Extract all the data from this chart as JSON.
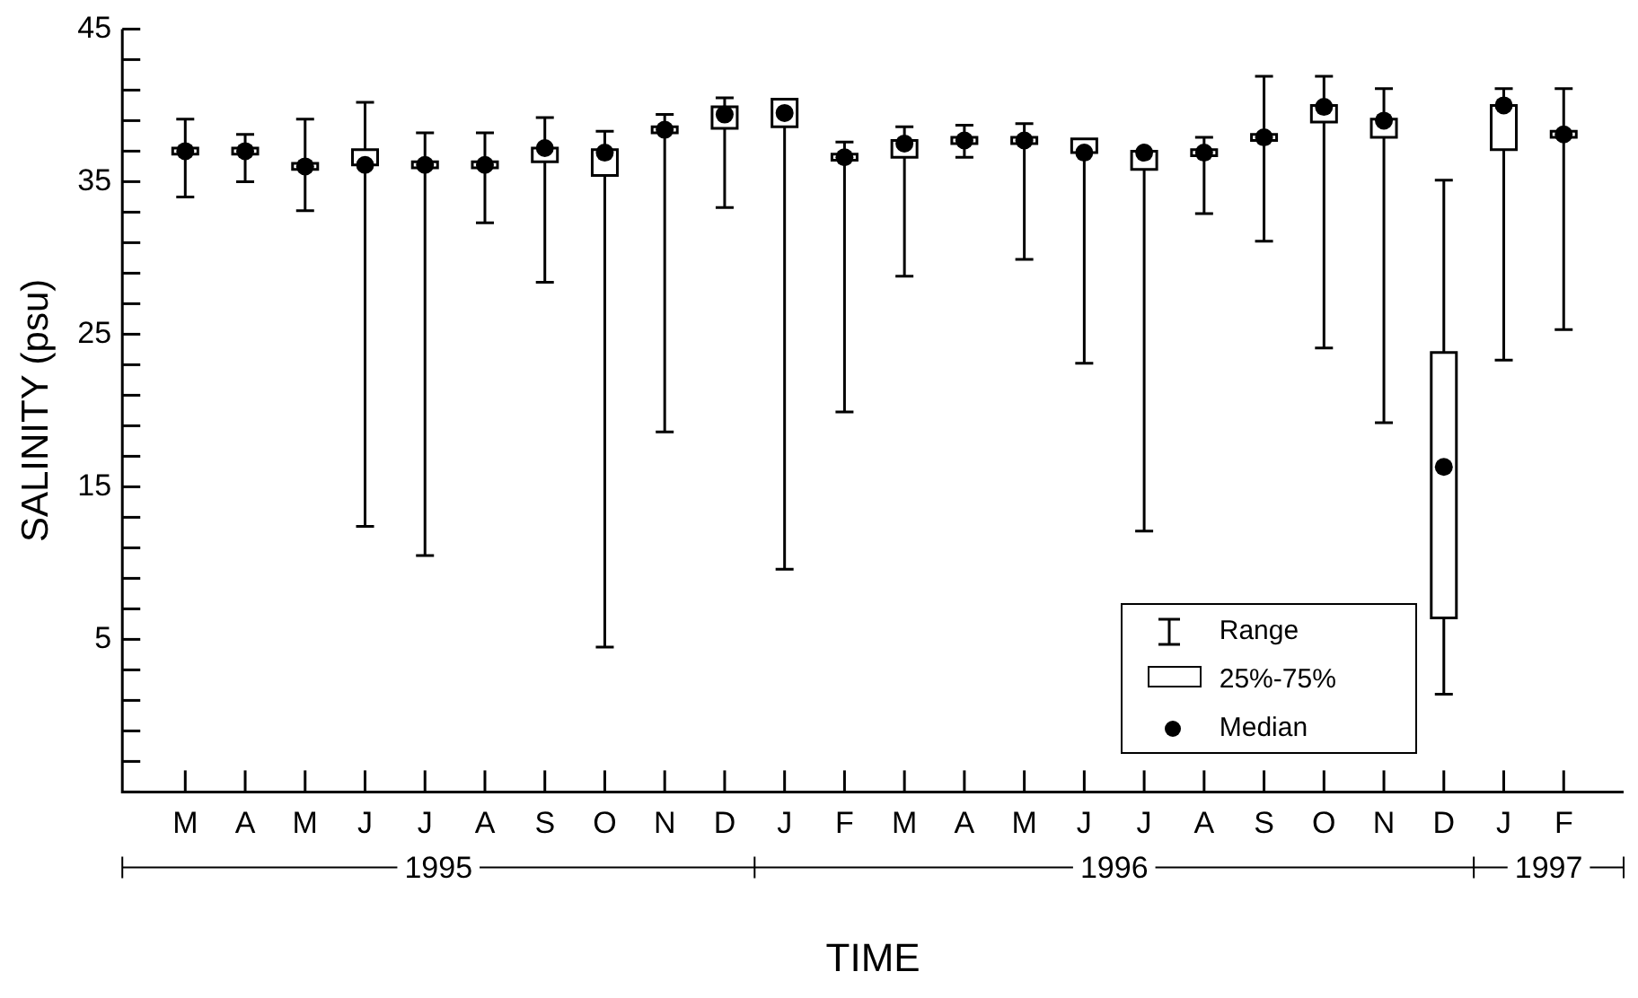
{
  "chart_data": {
    "type": "box",
    "xlabel": "TIME",
    "ylabel": "SALINITY (psu)",
    "categories": [
      "M",
      "A",
      "M",
      "J",
      "J",
      "A",
      "S",
      "O",
      "N",
      "D",
      "J",
      "F",
      "M",
      "A",
      "M",
      "J",
      "J",
      "A",
      "S",
      "O",
      "N",
      "D",
      "J",
      "F"
    ],
    "boxes": [
      {
        "low": 34.0,
        "q1": 36.8,
        "median": 37.0,
        "q3": 37.2,
        "high": 39.1
      },
      {
        "low": 35.0,
        "q1": 36.8,
        "median": 37.0,
        "q3": 37.2,
        "high": 38.1
      },
      {
        "low": 33.1,
        "q1": 35.8,
        "median": 36.0,
        "q3": 36.2,
        "high": 39.1
      },
      {
        "low": 12.4,
        "q1": 36.1,
        "median": 36.1,
        "q3": 37.1,
        "high": 40.2
      },
      {
        "low": 10.5,
        "q1": 35.9,
        "median": 36.1,
        "q3": 36.3,
        "high": 38.2
      },
      {
        "low": 32.3,
        "q1": 35.9,
        "median": 36.1,
        "q3": 36.3,
        "high": 38.2
      },
      {
        "low": 28.4,
        "q1": 36.3,
        "median": 37.2,
        "q3": 37.2,
        "high": 39.2
      },
      {
        "low": 4.5,
        "q1": 35.4,
        "median": 36.9,
        "q3": 37.1,
        "high": 38.3
      },
      {
        "low": 18.6,
        "q1": 38.2,
        "median": 38.4,
        "q3": 38.6,
        "high": 39.4
      },
      {
        "low": 33.3,
        "q1": 38.5,
        "median": 39.4,
        "q3": 39.9,
        "high": 40.5
      },
      {
        "low": 9.6,
        "q1": 38.6,
        "median": 39.5,
        "q3": 40.4,
        "high": 40.4
      },
      {
        "low": 19.9,
        "q1": 36.4,
        "median": 36.6,
        "q3": 36.8,
        "high": 37.6
      },
      {
        "low": 28.8,
        "q1": 36.6,
        "median": 37.5,
        "q3": 37.7,
        "high": 38.6
      },
      {
        "low": 36.6,
        "q1": 37.5,
        "median": 37.7,
        "q3": 37.9,
        "high": 38.7
      },
      {
        "low": 29.9,
        "q1": 37.5,
        "median": 37.7,
        "q3": 37.9,
        "high": 38.8
      },
      {
        "low": 23.1,
        "q1": 36.9,
        "median": 36.9,
        "q3": 37.8,
        "high": 37.8
      },
      {
        "low": 12.1,
        "q1": 35.8,
        "median": 36.9,
        "q3": 37.0,
        "high": 37.0
      },
      {
        "low": 32.9,
        "q1": 36.7,
        "median": 36.9,
        "q3": 37.1,
        "high": 37.9
      },
      {
        "low": 31.1,
        "q1": 37.7,
        "median": 37.9,
        "q3": 38.1,
        "high": 41.9
      },
      {
        "low": 24.1,
        "q1": 38.9,
        "median": 39.9,
        "q3": 40.0,
        "high": 41.9
      },
      {
        "low": 19.2,
        "q1": 37.9,
        "median": 39.0,
        "q3": 39.1,
        "high": 41.1
      },
      {
        "low": 1.4,
        "q1": 6.4,
        "median": 16.3,
        "q3": 23.8,
        "high": 35.1
      },
      {
        "low": 23.3,
        "q1": 37.1,
        "median": 40.0,
        "q3": 40.0,
        "high": 41.1
      },
      {
        "low": 25.3,
        "q1": 37.9,
        "median": 38.1,
        "q3": 38.3,
        "high": 41.1
      }
    ],
    "ylim": [
      -5,
      45
    ],
    "yticks": [
      {
        "value": -5,
        "label": null
      },
      {
        "value": -3,
        "label": null
      },
      {
        "value": -1,
        "label": null
      },
      {
        "value": 1,
        "label": null
      },
      {
        "value": 3,
        "label": null
      },
      5,
      {
        "value": 7,
        "label": null
      },
      {
        "value": 9,
        "label": null
      },
      {
        "value": 11,
        "label": null
      },
      {
        "value": 13,
        "label": null
      },
      15,
      {
        "value": 17,
        "label": null
      },
      {
        "value": 19,
        "label": null
      },
      {
        "value": 21,
        "label": null
      },
      {
        "value": 23,
        "label": null
      },
      25,
      {
        "value": 27,
        "label": null
      },
      {
        "value": 29,
        "label": null
      },
      {
        "value": 31,
        "label": null
      },
      {
        "value": 33,
        "label": null
      },
      35,
      {
        "value": 37,
        "label": null
      },
      {
        "value": 39,
        "label": null
      },
      {
        "value": 41,
        "label": null
      },
      {
        "value": 43,
        "label": null
      },
      45
    ],
    "series": [
      {
        "name": "Median",
        "type": "scatter",
        "color": "#000000",
        "values": [
          37.0,
          37.0,
          36.0,
          36.1,
          36.1,
          36.1,
          37.2,
          36.9,
          38.4,
          39.4,
          39.5,
          36.6,
          37.5,
          37.7,
          37.7,
          36.9,
          36.9,
          36.9,
          37.9,
          39.9,
          39.0,
          16.3,
          40.0,
          38.1
        ]
      }
    ],
    "grid": false,
    "legend": "bottom right",
    "annotations": [
      "Range",
      "25%-75%",
      "1995",
      "1996",
      "1997"
    ]
  }
}
